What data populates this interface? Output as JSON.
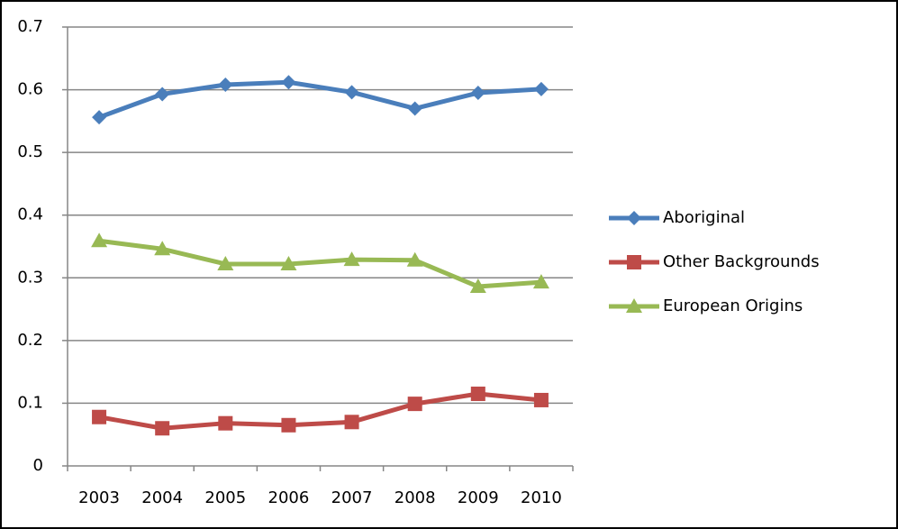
{
  "chart_data": {
    "type": "line",
    "categories": [
      "2003",
      "2004",
      "2005",
      "2006",
      "2007",
      "2008",
      "2009",
      "2010"
    ],
    "series": [
      {
        "name": "Aboriginal",
        "color": "#4a7ebb",
        "marker": "diamond",
        "values": [
          0.556,
          0.593,
          0.608,
          0.612,
          0.596,
          0.57,
          0.595,
          0.601
        ]
      },
      {
        "name": "Other Backgrounds",
        "color": "#be4b48",
        "marker": "square",
        "values": [
          0.078,
          0.06,
          0.068,
          0.065,
          0.07,
          0.099,
          0.115,
          0.105
        ]
      },
      {
        "name": "European Origins",
        "color": "#98b954",
        "marker": "triangle",
        "values": [
          0.359,
          0.346,
          0.322,
          0.322,
          0.329,
          0.328,
          0.286,
          0.293
        ]
      }
    ],
    "ylim": [
      0,
      0.7
    ],
    "yticks": [
      0,
      0.1,
      0.2,
      0.3,
      0.4,
      0.5,
      0.6,
      0.7
    ],
    "grid": true,
    "legend": "right"
  }
}
